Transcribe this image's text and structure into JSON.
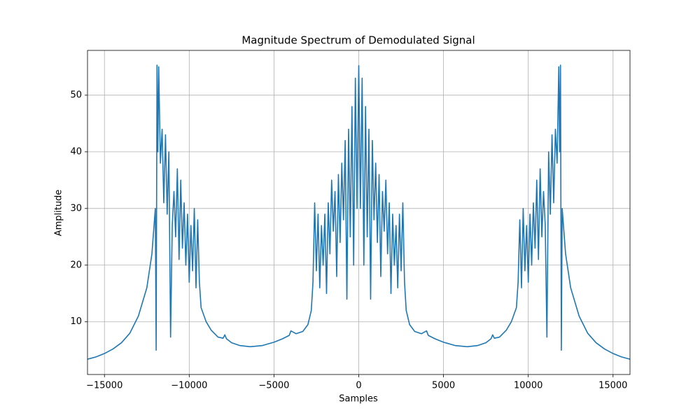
{
  "chart_data": {
    "type": "line",
    "title": "Magnitude Spectrum of Demodulated Signal",
    "xlabel": "Samples",
    "ylabel": "Amplitude",
    "color": "#1f77b4",
    "grid": true,
    "xlim": [
      -16000,
      16000
    ],
    "ylim": [
      0.7,
      57.9
    ],
    "xticks": [
      {
        "value": -15000,
        "label": "−15000"
      },
      {
        "value": -10000,
        "label": "−10000"
      },
      {
        "value": -5000,
        "label": "−5000"
      },
      0,
      5000,
      10000,
      15000
    ],
    "yticks": [
      10,
      20,
      30,
      40,
      50
    ],
    "x": [
      -16000,
      -15500,
      -15000,
      -14500,
      -14000,
      -13500,
      -13000,
      -12500,
      -12200,
      -12000,
      -11950,
      -11900,
      -11850,
      -11800,
      -11700,
      -11600,
      -11500,
      -11400,
      -11300,
      -11200,
      -11100,
      -11000,
      -10900,
      -10800,
      -10700,
      -10600,
      -10500,
      -10400,
      -10300,
      -10200,
      -10100,
      -10000,
      -9900,
      -9800,
      -9700,
      -9600,
      -9500,
      -9400,
      -9300,
      -9000,
      -8700,
      -8300,
      -8000,
      -7900,
      -7800,
      -7500,
      -7000,
      -6400,
      -5700,
      -5000,
      -4500,
      -4100,
      -4000,
      -3700,
      -3300,
      -3000,
      -2800,
      -2700,
      -2600,
      -2500,
      -2400,
      -2300,
      -2200,
      -2100,
      -2000,
      -1900,
      -1800,
      -1700,
      -1600,
      -1500,
      -1400,
      -1300,
      -1200,
      -1100,
      -1000,
      -900,
      -800,
      -700,
      -600,
      -500,
      -400,
      -300,
      -200,
      -100,
      0,
      100,
      200,
      300,
      400,
      500,
      600,
      700,
      800,
      900,
      1000,
      1100,
      1200,
      1300,
      1400,
      1500,
      1600,
      1700,
      1800,
      1900,
      2000,
      2100,
      2200,
      2300,
      2400,
      2500,
      2600,
      2700,
      2800,
      3000,
      3300,
      3700,
      4000,
      4100,
      4500,
      5000,
      5700,
      6400,
      7000,
      7500,
      7800,
      7900,
      8000,
      8300,
      8700,
      9000,
      9300,
      9400,
      9500,
      9600,
      9700,
      9800,
      9900,
      10000,
      10100,
      10200,
      10300,
      10400,
      10500,
      10600,
      10700,
      10800,
      10900,
      11000,
      11100,
      11200,
      11300,
      11400,
      11500,
      11600,
      11700,
      11800,
      11850,
      11900,
      11950,
      12000,
      12200,
      12500,
      13000,
      13500,
      14000,
      14500,
      15000,
      15500,
      16000
    ],
    "values": [
      3.4,
      3.8,
      4.4,
      5.2,
      6.3,
      8,
      11,
      16,
      22,
      30,
      5,
      55.3,
      40,
      55,
      38,
      44,
      31,
      43,
      29,
      40,
      7.3,
      27,
      33,
      25,
      37,
      21,
      35,
      23,
      31,
      20,
      29,
      17,
      27,
      19,
      30,
      16,
      28,
      17,
      12.5,
      10,
      8.5,
      7.3,
      7.1,
      7.7,
      7,
      6.3,
      5.8,
      5.6,
      5.8,
      6.4,
      7,
      7.6,
      8.4,
      7.9,
      8.3,
      9.5,
      12,
      17,
      31,
      19,
      29,
      16,
      27,
      20,
      29,
      15,
      31,
      22,
      35,
      26,
      33,
      18,
      36,
      24,
      38,
      28,
      42,
      14,
      44,
      25,
      48,
      20,
      53,
      30,
      55.2,
      30,
      53,
      20,
      48,
      25,
      44,
      14,
      42,
      28,
      38,
      24,
      36,
      18,
      33,
      26,
      35,
      22,
      31,
      15,
      29,
      20,
      27,
      16,
      29,
      19,
      31,
      17,
      12,
      9.5,
      8.3,
      7.9,
      8.4,
      7.6,
      7,
      6.4,
      5.8,
      5.6,
      5.8,
      6.3,
      7,
      7.7,
      7.1,
      7.3,
      8.5,
      10,
      12.5,
      17,
      28,
      16,
      30,
      19,
      27,
      17,
      29,
      20,
      31,
      23,
      35,
      21,
      37,
      25,
      33,
      27,
      7.3,
      40,
      29,
      43,
      31,
      44,
      38,
      55,
      40,
      55.3,
      5,
      30,
      22,
      16,
      11,
      8,
      6.3,
      5.2,
      4.4,
      3.8,
      3.4
    ]
  }
}
